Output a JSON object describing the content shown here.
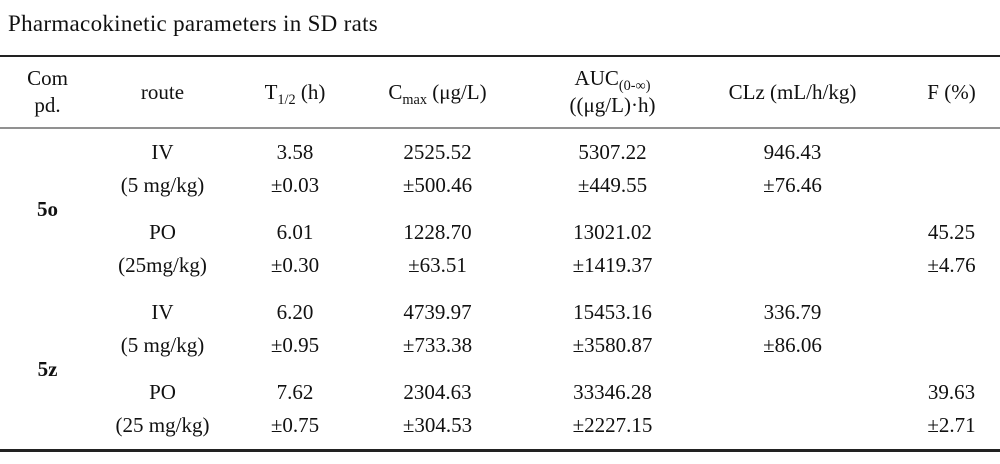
{
  "title": "Pharmacokinetic parameters in SD rats",
  "table": {
    "header": {
      "compd_line1": "Com",
      "compd_line2": "pd.",
      "route": "route",
      "t12": {
        "base": "T",
        "sub": "1/2",
        "rest": " (h)"
      },
      "cmax": {
        "base": "C",
        "sub": "max",
        "rest": " (μg/L)"
      },
      "auc": {
        "base": "AUC",
        "sub": "(0-∞)",
        "line2": "((μg/L)·h)"
      },
      "clz": "CLz (mL/h/kg)",
      "f": "F (%)"
    },
    "rows": [
      {
        "compound": "5o",
        "routes": [
          {
            "route": "IV",
            "dose": "(5 mg/kg)",
            "t12": "3.58",
            "t12_sd": "±0.03",
            "cmax": "2525.52",
            "cmax_sd": "±500.46",
            "auc": "5307.22",
            "auc_sd": "±449.55",
            "clz": "946.43",
            "clz_sd": "±76.46",
            "f": "",
            "f_sd": ""
          },
          {
            "route": "PO",
            "dose": "(25mg/kg)",
            "t12": "6.01",
            "t12_sd": "±0.30",
            "cmax": "1228.70",
            "cmax_sd": "±63.51",
            "auc": "13021.02",
            "auc_sd": "±1419.37",
            "clz": "",
            "clz_sd": "",
            "f": "45.25",
            "f_sd": "±4.76"
          }
        ]
      },
      {
        "compound": "5z",
        "routes": [
          {
            "route": "IV",
            "dose": "(5 mg/kg)",
            "t12": "6.20",
            "t12_sd": "±0.95",
            "cmax": "4739.97",
            "cmax_sd": "±733.38",
            "auc": "15453.16",
            "auc_sd": "±3580.87",
            "clz": "336.79",
            "clz_sd": "±86.06",
            "f": "",
            "f_sd": ""
          },
          {
            "route": "PO",
            "dose": "(25 mg/kg)",
            "t12": "7.62",
            "t12_sd": "±0.75",
            "cmax": "2304.63",
            "cmax_sd": "±304.53",
            "auc": "33346.28",
            "auc_sd": "±2227.15",
            "clz": "",
            "clz_sd": "",
            "f": "39.63",
            "f_sd": "±2.71"
          }
        ]
      }
    ]
  }
}
